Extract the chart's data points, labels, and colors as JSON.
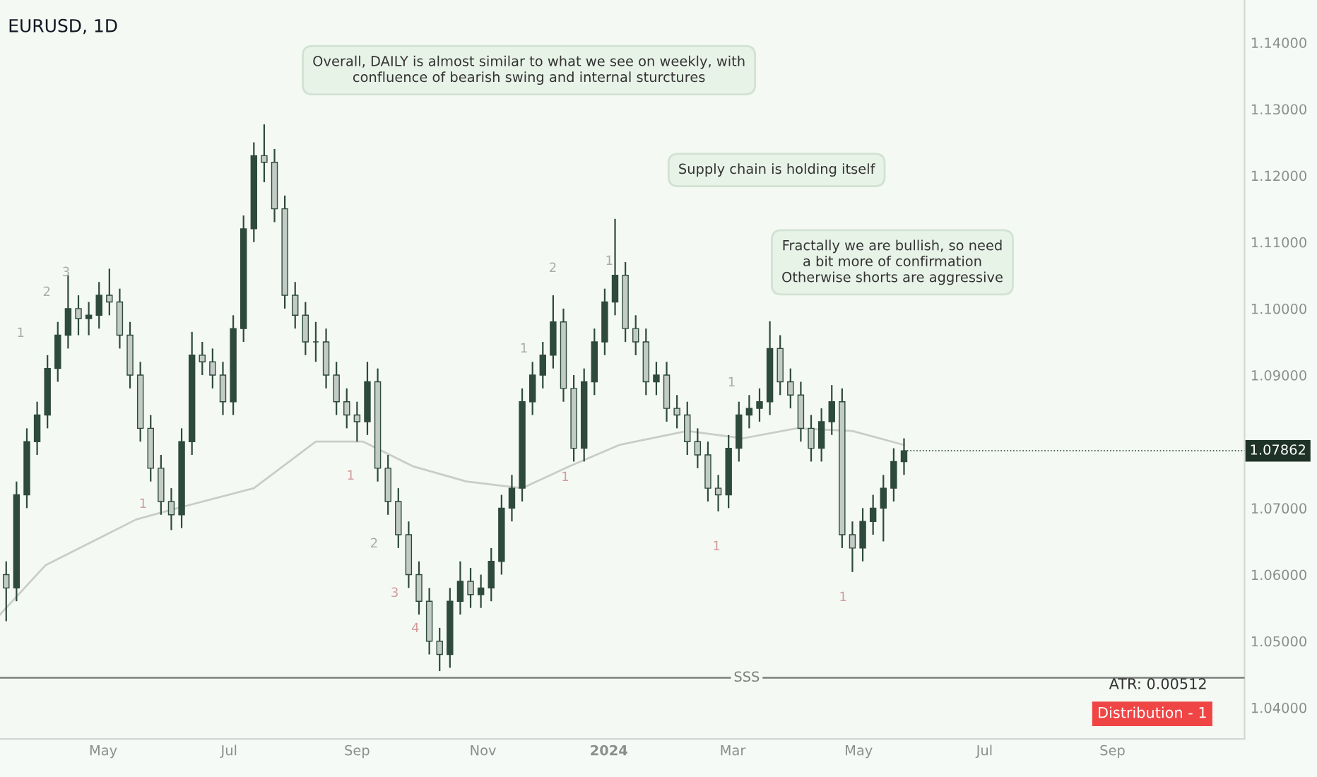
{
  "chart_data": {
    "type": "candlestick",
    "title": "EURUSD, 1D",
    "series": [
      {
        "type": "candlestick",
        "color": "#2e4a3d",
        "x": [
          "2023-03-15",
          "2023-03-20",
          "2023-03-25",
          "2023-03-30",
          "2023-04-04",
          "2023-04-09",
          "2023-04-14",
          "2023-04-19",
          "2023-04-24",
          "2023-04-29",
          "2023-05-04",
          "2023-05-09",
          "2023-05-14",
          "2023-05-19",
          "2023-05-24",
          "2023-05-29",
          "2023-06-03",
          "2023-06-08",
          "2023-06-13",
          "2023-06-18",
          "2023-06-23",
          "2023-06-28",
          "2023-07-03",
          "2023-07-08",
          "2023-07-13",
          "2023-07-18",
          "2023-07-23",
          "2023-07-28",
          "2023-08-02",
          "2023-08-07",
          "2023-08-12",
          "2023-08-17",
          "2023-08-22",
          "2023-08-27",
          "2023-09-01",
          "2023-09-06",
          "2023-09-11",
          "2023-09-16",
          "2023-09-21",
          "2023-09-26",
          "2023-10-01",
          "2023-10-06",
          "2023-10-11",
          "2023-10-16",
          "2023-10-21",
          "2023-10-26",
          "2023-10-31",
          "2023-11-05",
          "2023-11-10",
          "2023-11-15",
          "2023-11-20",
          "2023-11-25",
          "2023-11-30",
          "2023-12-05",
          "2023-12-10",
          "2023-12-15",
          "2023-12-20",
          "2023-12-25",
          "2023-12-30",
          "2024-01-04",
          "2024-01-09",
          "2024-01-14",
          "2024-01-19",
          "2024-01-24",
          "2024-01-29",
          "2024-02-03",
          "2024-02-08",
          "2024-02-13",
          "2024-02-18",
          "2024-02-23",
          "2024-02-28",
          "2024-03-04",
          "2024-03-09",
          "2024-03-14",
          "2024-03-19",
          "2024-03-24",
          "2024-03-29",
          "2024-04-03",
          "2024-04-08",
          "2024-04-13",
          "2024-04-18",
          "2024-04-23",
          "2024-04-28",
          "2024-05-03",
          "2024-05-08",
          "2024-05-13",
          "2024-05-18",
          "2024-05-23"
        ],
        "ohlc": [
          [
            1.06,
            1.062,
            1.053,
            1.058
          ],
          [
            1.058,
            1.074,
            1.056,
            1.072
          ],
          [
            1.072,
            1.082,
            1.07,
            1.08
          ],
          [
            1.08,
            1.086,
            1.078,
            1.084
          ],
          [
            1.084,
            1.093,
            1.082,
            1.091
          ],
          [
            1.091,
            1.098,
            1.089,
            1.096
          ],
          [
            1.096,
            1.105,
            1.094,
            1.1
          ],
          [
            1.1,
            1.102,
            1.096,
            1.0985
          ],
          [
            1.0985,
            1.101,
            1.096,
            1.099
          ],
          [
            1.099,
            1.104,
            1.097,
            1.102
          ],
          [
            1.102,
            1.106,
            1.099,
            1.101
          ],
          [
            1.101,
            1.103,
            1.094,
            1.096
          ],
          [
            1.096,
            1.098,
            1.088,
            1.09
          ],
          [
            1.09,
            1.092,
            1.08,
            1.082
          ],
          [
            1.082,
            1.084,
            1.074,
            1.076
          ],
          [
            1.076,
            1.078,
            1.069,
            1.071
          ],
          [
            1.071,
            1.073,
            1.0667,
            1.069
          ],
          [
            1.069,
            1.082,
            1.067,
            1.08
          ],
          [
            1.08,
            1.0965,
            1.078,
            1.093
          ],
          [
            1.093,
            1.095,
            1.09,
            1.092
          ],
          [
            1.092,
            1.094,
            1.088,
            1.09
          ],
          [
            1.09,
            1.092,
            1.084,
            1.086
          ],
          [
            1.086,
            1.099,
            1.084,
            1.097
          ],
          [
            1.097,
            1.114,
            1.095,
            1.112
          ],
          [
            1.112,
            1.125,
            1.11,
            1.123
          ],
          [
            1.123,
            1.1277,
            1.119,
            1.122
          ],
          [
            1.122,
            1.124,
            1.113,
            1.115
          ],
          [
            1.115,
            1.117,
            1.1,
            1.102
          ],
          [
            1.102,
            1.104,
            1.097,
            1.099
          ],
          [
            1.099,
            1.101,
            1.093,
            1.095
          ],
          [
            1.095,
            1.098,
            1.092,
            1.095
          ],
          [
            1.095,
            1.097,
            1.088,
            1.09
          ],
          [
            1.09,
            1.092,
            1.084,
            1.086
          ],
          [
            1.086,
            1.088,
            1.082,
            1.084
          ],
          [
            1.084,
            1.086,
            1.08,
            1.083
          ],
          [
            1.083,
            1.092,
            1.081,
            1.089
          ],
          [
            1.089,
            1.091,
            1.074,
            1.076
          ],
          [
            1.076,
            1.078,
            1.069,
            1.071
          ],
          [
            1.071,
            1.073,
            1.064,
            1.066
          ],
          [
            1.066,
            1.068,
            1.058,
            1.06
          ],
          [
            1.06,
            1.062,
            1.054,
            1.056
          ],
          [
            1.056,
            1.058,
            1.048,
            1.05
          ],
          [
            1.05,
            1.052,
            1.0455,
            1.048
          ],
          [
            1.048,
            1.058,
            1.046,
            1.056
          ],
          [
            1.056,
            1.062,
            1.054,
            1.059
          ],
          [
            1.059,
            1.061,
            1.055,
            1.057
          ],
          [
            1.057,
            1.06,
            1.055,
            1.058
          ],
          [
            1.058,
            1.064,
            1.056,
            1.062
          ],
          [
            1.062,
            1.072,
            1.06,
            1.07
          ],
          [
            1.07,
            1.075,
            1.068,
            1.073
          ],
          [
            1.073,
            1.088,
            1.071,
            1.086
          ],
          [
            1.086,
            1.092,
            1.084,
            1.09
          ],
          [
            1.09,
            1.095,
            1.088,
            1.093
          ],
          [
            1.093,
            1.102,
            1.091,
            1.098
          ],
          [
            1.098,
            1.1,
            1.086,
            1.088
          ],
          [
            1.088,
            1.09,
            1.077,
            1.079
          ],
          [
            1.079,
            1.091,
            1.077,
            1.089
          ],
          [
            1.089,
            1.097,
            1.087,
            1.095
          ],
          [
            1.095,
            1.103,
            1.093,
            1.101
          ],
          [
            1.101,
            1.1135,
            1.099,
            1.105
          ],
          [
            1.105,
            1.107,
            1.095,
            1.097
          ],
          [
            1.097,
            1.099,
            1.093,
            1.095
          ],
          [
            1.095,
            1.097,
            1.087,
            1.089
          ],
          [
            1.089,
            1.092,
            1.087,
            1.09
          ],
          [
            1.09,
            1.092,
            1.083,
            1.085
          ],
          [
            1.085,
            1.087,
            1.082,
            1.084
          ],
          [
            1.084,
            1.086,
            1.078,
            1.08
          ],
          [
            1.08,
            1.082,
            1.076,
            1.078
          ],
          [
            1.078,
            1.08,
            1.071,
            1.073
          ],
          [
            1.073,
            1.075,
            1.0695,
            1.072
          ],
          [
            1.072,
            1.081,
            1.07,
            1.079
          ],
          [
            1.079,
            1.086,
            1.077,
            1.084
          ],
          [
            1.084,
            1.087,
            1.082,
            1.085
          ],
          [
            1.085,
            1.088,
            1.083,
            1.086
          ],
          [
            1.086,
            1.0981,
            1.084,
            1.094
          ],
          [
            1.094,
            1.096,
            1.087,
            1.089
          ],
          [
            1.089,
            1.091,
            1.085,
            1.087
          ],
          [
            1.087,
            1.089,
            1.08,
            1.082
          ],
          [
            1.082,
            1.084,
            1.077,
            1.079
          ],
          [
            1.079,
            1.085,
            1.077,
            1.083
          ],
          [
            1.083,
            1.0885,
            1.081,
            1.086
          ],
          [
            1.086,
            1.088,
            1.064,
            1.066
          ],
          [
            1.066,
            1.068,
            1.0604,
            1.064
          ],
          [
            1.064,
            1.07,
            1.062,
            1.068
          ],
          [
            1.068,
            1.072,
            1.066,
            1.07
          ],
          [
            1.07,
            1.075,
            1.065,
            1.073
          ],
          [
            1.073,
            1.079,
            1.071,
            1.077
          ],
          [
            1.077,
            1.0805,
            1.075,
            1.07862
          ]
        ]
      },
      {
        "type": "line",
        "color": "#c9cdca",
        "x": [
          "2023-03-12",
          "2023-04-03",
          "2023-05-17",
          "2023-06-06",
          "2023-07-13",
          "2023-08-12",
          "2023-09-04",
          "2023-09-28",
          "2023-10-24",
          "2023-11-20",
          "2023-12-13",
          "2024-01-06",
          "2024-02-08",
          "2024-03-06",
          "2024-04-01",
          "2024-04-28",
          "2024-05-23"
        ],
        "values": [
          1.054,
          1.0614,
          1.0683,
          1.07,
          1.073,
          1.08,
          1.08,
          1.0763,
          1.074,
          1.073,
          1.0763,
          1.0795,
          1.0816,
          1.0805,
          1.082,
          1.0816,
          1.0795
        ]
      }
    ],
    "xlim": [
      "2023-03-12",
      "2024-11-04"
    ],
    "xticks": [
      {
        "value": "2023-05-01",
        "label": "May"
      },
      {
        "value": "2023-07-01",
        "label": "Jul"
      },
      {
        "value": "2023-09-01",
        "label": "Sep"
      },
      {
        "value": "2023-11-01",
        "label": "Nov"
      },
      {
        "value": "2024-01-01",
        "label": "2024"
      },
      {
        "value": "2024-03-01",
        "label": "Mar"
      },
      {
        "value": "2024-05-01",
        "label": "May"
      },
      {
        "value": "2024-07-01",
        "label": "Jul"
      },
      {
        "value": "2024-09-01",
        "label": "Sep"
      }
    ],
    "ylim": [
      1.0353,
      1.1464
    ],
    "yticks": [
      {
        "value": 1.04,
        "label": "1.04000"
      },
      {
        "value": 1.05,
        "label": "1.05000"
      },
      {
        "value": 1.06,
        "label": "1.06000"
      },
      {
        "value": 1.07,
        "label": "1.07000"
      },
      {
        "value": 1.09,
        "label": "1.09000"
      },
      {
        "value": 1.1,
        "label": "1.10000"
      },
      {
        "value": 1.11,
        "label": "1.11000"
      },
      {
        "value": 1.12,
        "label": "1.12000"
      },
      {
        "value": 1.13,
        "label": "1.13000"
      },
      {
        "value": 1.14,
        "label": "1.14000"
      }
    ],
    "ref_lines": [
      {
        "axis": "y",
        "value": 1.0445,
        "label": "SSS",
        "color": "#7a7e7c"
      }
    ],
    "grid": false,
    "legend": false,
    "annotations": [
      "Overall, DAILY is almost similar to what we see on weekly, with\nconfluence of bearish swing and internal sturctures",
      "Supply chain is holding itself",
      "Fractally we are bullish, so need\na bit more of confirmation\nOtherwise shorts are aggressive",
      "ATR: 0.00512",
      "Distribution - 1",
      {
        "text": "1.07862",
        "x": "2024-05-23",
        "y": 1.07862
      },
      "1",
      "2",
      "3",
      "1",
      "1",
      "2",
      "3",
      "4",
      "1",
      "2",
      "1",
      "1",
      "1",
      "1",
      "1"
    ]
  }
}
